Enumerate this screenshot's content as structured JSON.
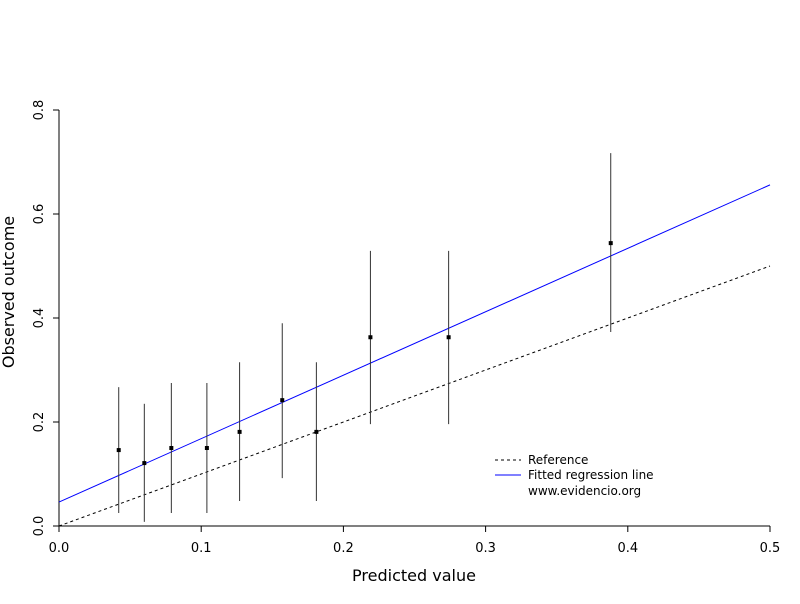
{
  "chart_data": {
    "type": "scatter",
    "title": "",
    "xlabel": "Predicted value",
    "ylabel": "Observed outcome",
    "xlim": [
      0,
      0.5
    ],
    "ylim": [
      0,
      0.8
    ],
    "xticks": [
      "0.0",
      "0.1",
      "0.2",
      "0.3",
      "0.4",
      "0.5"
    ],
    "yticks": [
      "0.0",
      "0.2",
      "0.4",
      "0.6",
      "0.8"
    ],
    "grid": false,
    "points": [
      {
        "x": 0.042,
        "y": 0.146,
        "lo": 0.025,
        "hi": 0.267
      },
      {
        "x": 0.06,
        "y": 0.121,
        "lo": 0.008,
        "hi": 0.235
      },
      {
        "x": 0.079,
        "y": 0.15,
        "lo": 0.025,
        "hi": 0.275
      },
      {
        "x": 0.104,
        "y": 0.15,
        "lo": 0.025,
        "hi": 0.275
      },
      {
        "x": 0.127,
        "y": 0.181,
        "lo": 0.048,
        "hi": 0.315
      },
      {
        "x": 0.157,
        "y": 0.242,
        "lo": 0.092,
        "hi": 0.39
      },
      {
        "x": 0.181,
        "y": 0.181,
        "lo": 0.048,
        "hi": 0.315
      },
      {
        "x": 0.219,
        "y": 0.363,
        "lo": 0.196,
        "hi": 0.529
      },
      {
        "x": 0.274,
        "y": 0.363,
        "lo": 0.196,
        "hi": 0.529
      },
      {
        "x": 0.388,
        "y": 0.544,
        "lo": 0.373,
        "hi": 0.717
      }
    ],
    "lines": [
      {
        "name": "Reference",
        "intercept": 0,
        "slope": 1,
        "color": "#000000",
        "dashed": true
      },
      {
        "name": "Fitted regression line",
        "intercept": 0.046,
        "slope": 1.22,
        "color": "#0000ff",
        "dashed": false
      }
    ],
    "legend": {
      "position": "bottom-right",
      "entries": [
        "Reference",
        "Fitted regression line"
      ],
      "note": "www.evidencio.org"
    }
  }
}
